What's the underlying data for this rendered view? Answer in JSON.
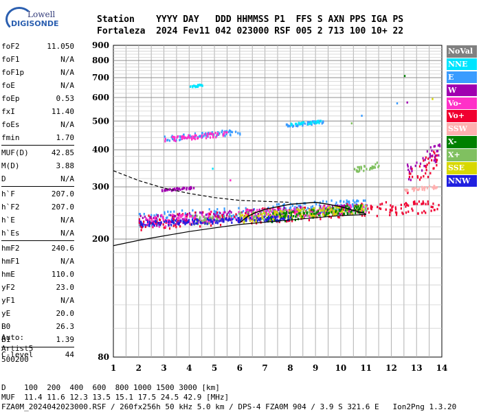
{
  "logo": {
    "line1": "Lowell",
    "line2": "DIGISONDE"
  },
  "header": {
    "line1": "Station    YYYY DAY   DDD HHMMSS P1  FFS S AXN PPS IGA PS",
    "line2": "Fortaleza  2024 Fev11 042 023000 RSF 005 2 713 100 10+ 22"
  },
  "params": [
    {
      "group": [
        {
          "k": "foF2",
          "v": "11.050"
        },
        {
          "k": "foF1",
          "v": "N/A"
        },
        {
          "k": "foF1p",
          "v": "N/A"
        },
        {
          "k": "foE",
          "v": "N/A"
        },
        {
          "k": "foEp",
          "v": "0.53"
        },
        {
          "k": "fxI",
          "v": "11.40"
        },
        {
          "k": "foEs",
          "v": "N/A"
        },
        {
          "k": "fmin",
          "v": "1.70"
        }
      ]
    },
    {
      "group": [
        {
          "k": "MUF(D)",
          "v": "42.85"
        },
        {
          "k": "M(D)",
          "v": "3.88"
        },
        {
          "k": "D",
          "v": "N/A"
        }
      ]
    },
    {
      "group": [
        {
          "k": "h`F",
          "v": "207.0"
        },
        {
          "k": "h`F2",
          "v": "207.0"
        },
        {
          "k": "h`E",
          "v": "N/A"
        },
        {
          "k": "h`Es",
          "v": "N/A"
        }
      ]
    },
    {
      "group": [
        {
          "k": "hmF2",
          "v": "240.6"
        },
        {
          "k": "hmF1",
          "v": "N/A"
        },
        {
          "k": "hmE",
          "v": "110.0"
        },
        {
          "k": "yF2",
          "v": "23.0"
        },
        {
          "k": "yF1",
          "v": "N/A"
        },
        {
          "k": "yE",
          "v": "20.0"
        },
        {
          "k": "B0",
          "v": "26.3"
        },
        {
          "k": "B1",
          "v": "1.39"
        }
      ]
    },
    {
      "group": [
        {
          "k": "C-level",
          "v": "44"
        }
      ]
    }
  ],
  "auto": {
    "line1": "Auto:",
    "line2": "Artist5",
    "line3": "500200"
  },
  "footer": {
    "line1": "D    100  200  400  600  800 1000 1500 3000 [km]",
    "line2": "MUF  11.4 11.6 12.3 13.5 15.1 17.5 24.5 42.9 [MHz]",
    "line3": "FZA0M_2024042023000.RSF / 260fx256h 50 kHz 5.0 km / DPS-4 FZA0M 904 / 3.9 S 321.6 E   Ion2Png 1.3.20"
  },
  "legend": [
    {
      "label": "NoVal",
      "bg": "#808080",
      "fg": "#ffffff"
    },
    {
      "label": "NNE",
      "bg": "#00e5ff",
      "fg": "#ffffff"
    },
    {
      "label": "E",
      "bg": "#3a9cff",
      "fg": "#ffffff"
    },
    {
      "label": "W",
      "bg": "#a000b0",
      "fg": "#ffffff"
    },
    {
      "label": "Vo-",
      "bg": "#ff30c8",
      "fg": "#ffffff"
    },
    {
      "label": "Vo+",
      "bg": "#f00030",
      "fg": "#ffffff"
    },
    {
      "label": "SSW",
      "bg": "#ffb0b0",
      "fg": "#ffffff"
    },
    {
      "label": "X-",
      "bg": "#008000",
      "fg": "#ffffff"
    },
    {
      "label": "X+",
      "bg": "#80c060",
      "fg": "#ffffff"
    },
    {
      "label": "SSE",
      "bg": "#d8d800",
      "fg": "#ffffff"
    },
    {
      "label": "NNW",
      "bg": "#2020e0",
      "fg": "#ffffff"
    }
  ],
  "chart_data": {
    "type": "scatter",
    "title": "",
    "xlabel": "",
    "ylabel": "",
    "xlim": [
      1,
      14
    ],
    "ylim": [
      80,
      900
    ],
    "yscale": "log",
    "grid": true,
    "x_ticks": [
      1,
      2,
      3,
      4,
      5,
      6,
      7,
      8,
      9,
      10,
      11,
      12,
      13,
      14
    ],
    "y_ticks": [
      80,
      200,
      300,
      400,
      500,
      600,
      700,
      800,
      900
    ],
    "legend_position": "right",
    "series": [
      {
        "polarization": "E",
        "color": "#3a9cff",
        "clusters": [
          {
            "x": [
              2.0,
              11.0
            ],
            "y": [
              222,
              272
            ]
          },
          {
            "x": [
              3.0,
              6.0
            ],
            "y": [
              430,
              470
            ]
          },
          {
            "x": [
              7.8,
              9.3
            ],
            "y": [
              480,
              505
            ]
          }
        ]
      },
      {
        "polarization": "Vo+",
        "color": "#f00030",
        "clusters": [
          {
            "x": [
              2.0,
              13.9
            ],
            "y": [
              215,
              270
            ]
          },
          {
            "x": [
              12.6,
              13.9
            ],
            "y": [
              280,
              400
            ]
          }
        ]
      },
      {
        "polarization": "W",
        "color": "#a000b0",
        "clusters": [
          {
            "x": [
              2.0,
              11.0
            ],
            "y": [
              222,
              262
            ]
          },
          {
            "x": [
              12.6,
              13.9
            ],
            "y": [
              310,
              420
            ]
          },
          {
            "x": [
              2.9,
              4.2
            ],
            "y": [
              292,
              302
            ]
          }
        ]
      },
      {
        "polarization": "Vo-",
        "color": "#ff30c8",
        "clusters": [
          {
            "x": [
              3.0,
              5.5
            ],
            "y": [
              428,
              462
            ]
          },
          {
            "x": [
              2.2,
              11.0
            ],
            "y": [
              220,
              262
            ]
          }
        ]
      },
      {
        "polarization": "NNE",
        "color": "#00e5ff",
        "clusters": [
          {
            "x": [
              4.0,
              4.5
            ],
            "y": [
              650,
              670
            ]
          },
          {
            "x": [
              8.0,
              9.2
            ],
            "y": [
              485,
              505
            ]
          }
        ]
      },
      {
        "polarization": "X+",
        "color": "#80c060",
        "clusters": [
          {
            "x": [
              4.0,
              11.0
            ],
            "y": [
              225,
              260
            ]
          },
          {
            "x": [
              10.5,
              11.5
            ],
            "y": [
              335,
              365
            ]
          }
        ]
      },
      {
        "polarization": "SSE",
        "color": "#d8d800",
        "clusters": [
          {
            "x": [
              6.0,
              11.0
            ],
            "y": [
              228,
              262
            ]
          }
        ]
      },
      {
        "polarization": "X-",
        "color": "#008000",
        "clusters": [
          {
            "x": [
              7.0,
              11.0
            ],
            "y": [
              228,
              262
            ]
          }
        ]
      },
      {
        "polarization": "SSW",
        "color": "#ffb0b0",
        "clusters": [
          {
            "x": [
              12.5,
              13.8
            ],
            "y": [
              290,
              305
            ]
          }
        ]
      },
      {
        "polarization": "NNW",
        "color": "#2020e0",
        "clusters": [
          {
            "x": [
              2.0,
              8.0
            ],
            "y": [
              222,
              240
            ]
          }
        ]
      }
    ],
    "isolated_points": [
      {
        "x": 12.5,
        "y": 715,
        "color": "#008000"
      },
      {
        "x": 12.2,
        "y": 578,
        "color": "#3a9cff"
      },
      {
        "x": 12.6,
        "y": 582,
        "color": "#a000b0"
      },
      {
        "x": 13.6,
        "y": 598,
        "color": "#d8d800"
      },
      {
        "x": 10.4,
        "y": 495,
        "color": "#80c060"
      },
      {
        "x": 10.8,
        "y": 525,
        "color": "#3a9cff"
      },
      {
        "x": 4.9,
        "y": 348,
        "color": "#00e5ff"
      },
      {
        "x": 5.6,
        "y": 318,
        "color": "#ff30c8"
      }
    ],
    "profile_solid": {
      "x": [
        1.0,
        2.0,
        3.0,
        4.0,
        5.0,
        6.0,
        7.0,
        8.0,
        9.0,
        10.0,
        11.0
      ],
      "y": [
        190,
        198,
        205,
        212,
        218,
        224,
        228,
        232,
        236,
        240,
        242
      ]
    },
    "profile_trace": {
      "x": [
        6.0,
        6.3,
        6.6,
        7.0,
        7.5,
        8.0,
        8.5,
        9.0,
        9.5,
        10.0,
        10.5,
        11.0
      ],
      "y": [
        227,
        238,
        245,
        252,
        257,
        262,
        264,
        266,
        262,
        257,
        250,
        243
      ]
    },
    "profile_dashed": {
      "x": [
        1.0,
        2.0,
        3.0,
        4.0,
        5.0,
        6.0,
        7.0,
        8.0
      ],
      "y": [
        340,
        315,
        297,
        285,
        276,
        270,
        268,
        266
      ]
    }
  }
}
